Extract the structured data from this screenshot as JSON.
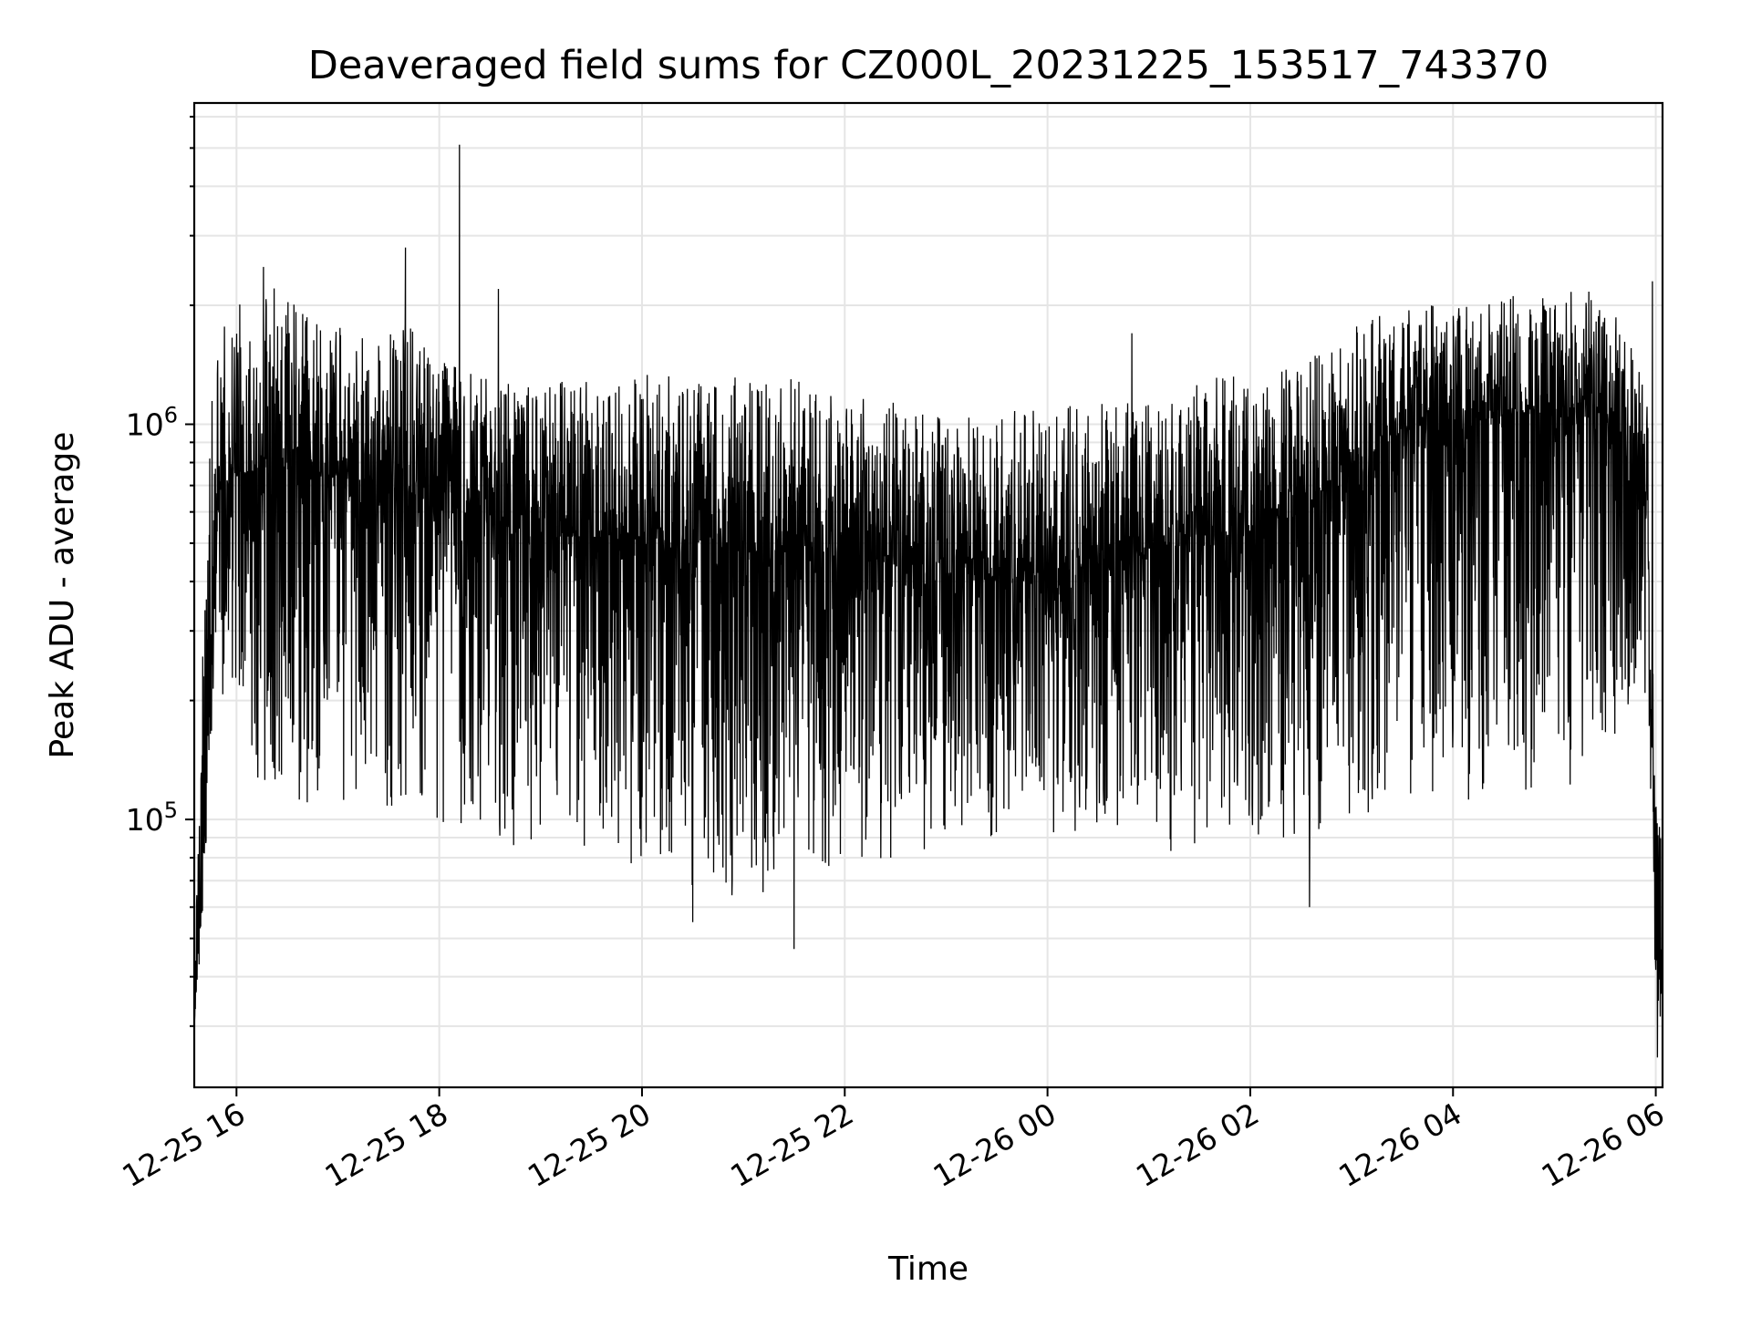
{
  "chart_data": {
    "type": "line",
    "title": "Deaveraged field sums for CZ000L_20231225_153517_743370",
    "xlabel": "Time",
    "ylabel": "Peak ADU - average",
    "y_scale": "log",
    "ylim": [
      21000,
      6500000
    ],
    "xlim": [
      "2023-12-25 15:35",
      "2023-12-26 06:04"
    ],
    "grid": true,
    "line_color": "#000000",
    "x_ticks": [
      {
        "value": "2023-12-25 16:00",
        "label": "12-25 16"
      },
      {
        "value": "2023-12-25 18:00",
        "label": "12-25 18"
      },
      {
        "value": "2023-12-25 20:00",
        "label": "12-25 20"
      },
      {
        "value": "2023-12-25 22:00",
        "label": "12-25 22"
      },
      {
        "value": "2023-12-26 00:00",
        "label": "12-26 00"
      },
      {
        "value": "2023-12-26 02:00",
        "label": "12-26 02"
      },
      {
        "value": "2023-12-26 04:00",
        "label": "12-26 04"
      },
      {
        "value": "2023-12-26 06:00",
        "label": "12-26 06"
      }
    ],
    "y_ticks": [
      {
        "value": 100000,
        "base": "10",
        "exp": "5"
      },
      {
        "value": 1000000,
        "base": "10",
        "exp": "6"
      }
    ],
    "series": [
      {
        "x": [
          "2023-12-25 15:35",
          "2023-12-25 15:40",
          "2023-12-25 15:45",
          "2023-12-25 15:50",
          "2023-12-25 16:00",
          "2023-12-25 16:20",
          "2023-12-25 16:40",
          "2023-12-25 17:00",
          "2023-12-25 17:20",
          "2023-12-25 17:40",
          "2023-12-25 18:00",
          "2023-12-25 18:20",
          "2023-12-25 18:40",
          "2023-12-25 19:00",
          "2023-12-25 19:30",
          "2023-12-25 20:00",
          "2023-12-25 20:30",
          "2023-12-25 21:00",
          "2023-12-25 21:30",
          "2023-12-25 22:00",
          "2023-12-25 22:30",
          "2023-12-25 23:00",
          "2023-12-25 23:30",
          "2023-12-26 00:00",
          "2023-12-26 00:30",
          "2023-12-26 01:00",
          "2023-12-26 01:30",
          "2023-12-26 02:00",
          "2023-12-26 02:30",
          "2023-12-26 03:00",
          "2023-12-26 03:30",
          "2023-12-26 04:00",
          "2023-12-26 04:30",
          "2023-12-26 05:00",
          "2023-12-26 05:20",
          "2023-12-26 05:40",
          "2023-12-26 05:55",
          "2023-12-26 06:00",
          "2023-12-26 06:04"
        ],
        "center": [
          30000,
          80000,
          280000,
          700000,
          750000,
          780000,
          760000,
          740000,
          720000,
          700000,
          680000,
          620000,
          560000,
          520000,
          520000,
          520000,
          500000,
          480000,
          480000,
          460000,
          440000,
          420000,
          420000,
          420000,
          440000,
          480000,
          520000,
          550000,
          600000,
          800000,
          950000,
          1000000,
          1050000,
          1100000,
          1150000,
          950000,
          600000,
          45000,
          40000
        ],
        "low": [
          30000,
          55000,
          150000,
          180000,
          150000,
          110000,
          105000,
          110000,
          105000,
          110000,
          95000,
          90000,
          85000,
          85000,
          80000,
          70000,
          65000,
          60000,
          75000,
          75000,
          80000,
          85000,
          90000,
          90000,
          95000,
          80000,
          85000,
          90000,
          85000,
          100000,
          110000,
          110000,
          115000,
          115000,
          130000,
          170000,
          200000,
          28000,
          25000
        ],
        "high": [
          35000,
          300000,
          1300000,
          1800000,
          2000000,
          2300000,
          1900000,
          1800000,
          1600000,
          1800000,
          1500000,
          1400000,
          1300000,
          1300000,
          1300000,
          1350000,
          1350000,
          1350000,
          1300000,
          1200000,
          1150000,
          1100000,
          1100000,
          1100000,
          1150000,
          1200000,
          1300000,
          1350000,
          1400000,
          1800000,
          1950000,
          2050000,
          2100000,
          2200000,
          2200000,
          1900000,
          1200000,
          110000,
          90000
        ],
        "spikes": [
          {
            "x": "2023-12-25 16:16",
            "y": 2500000
          },
          {
            "x": "2023-12-25 17:40",
            "y": 2800000
          },
          {
            "x": "2023-12-25 18:12",
            "y": 5100000
          },
          {
            "x": "2023-12-25 18:35",
            "y": 2200000
          },
          {
            "x": "2023-12-25 21:30",
            "y": 47000
          },
          {
            "x": "2023-12-25 20:30",
            "y": 55000
          },
          {
            "x": "2023-12-26 02:35",
            "y": 60000
          },
          {
            "x": "2023-12-26 00:50",
            "y": 1700000
          },
          {
            "x": "2023-12-26 05:58",
            "y": 2300000
          },
          {
            "x": "2023-12-26 06:01",
            "y": 25000
          }
        ]
      }
    ]
  }
}
